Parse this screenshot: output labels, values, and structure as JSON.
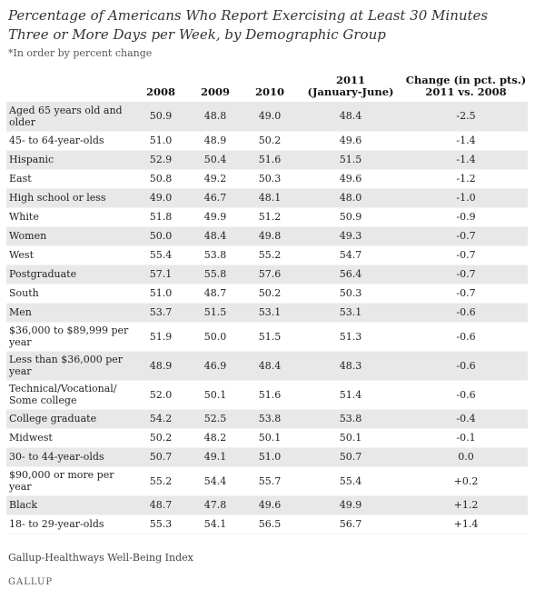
{
  "title": "Percentage of Americans Who Report Exercising at Least 30 Minutes Three or More Days per Week, by Demographic Group",
  "note": "*In order by percent change",
  "source": "Gallup-Healthways Well-Being Index",
  "logo": "GALLUP",
  "columns": {
    "c2008": "2008",
    "c2009": "2009",
    "c2010": "2010",
    "c2011_line1": "2011",
    "c2011_line2": "(January-June)",
    "change_line1": "Change (in pct. pts.)",
    "change_line2": "2011 vs. 2008"
  },
  "chart_data": {
    "type": "table",
    "title": "Percentage of Americans Who Report Exercising at Least 30 Minutes Three or More Days per Week, by Demographic Group",
    "columns": [
      "",
      "2008",
      "2009",
      "2010",
      "2011 (January-June)",
      "Change (in pct. pts.) 2011 vs. 2008"
    ],
    "rows": [
      {
        "label": "Aged 65 years old and older",
        "v2008": "50.9",
        "v2009": "48.8",
        "v2010": "49.0",
        "v2011": "48.4",
        "change": "-2.5"
      },
      {
        "label": "45- to 64-year-olds",
        "v2008": "51.0",
        "v2009": "48.9",
        "v2010": "50.2",
        "v2011": "49.6",
        "change": "-1.4"
      },
      {
        "label": "Hispanic",
        "v2008": "52.9",
        "v2009": "50.4",
        "v2010": "51.6",
        "v2011": "51.5",
        "change": "-1.4"
      },
      {
        "label": "East",
        "v2008": "50.8",
        "v2009": "49.2",
        "v2010": "50.3",
        "v2011": "49.6",
        "change": "-1.2"
      },
      {
        "label": "High school or less",
        "v2008": "49.0",
        "v2009": "46.7",
        "v2010": "48.1",
        "v2011": "48.0",
        "change": "-1.0"
      },
      {
        "label": "White",
        "v2008": "51.8",
        "v2009": "49.9",
        "v2010": "51.2",
        "v2011": "50.9",
        "change": "-0.9"
      },
      {
        "label": "Women",
        "v2008": "50.0",
        "v2009": "48.4",
        "v2010": "49.8",
        "v2011": "49.3",
        "change": "-0.7"
      },
      {
        "label": "West",
        "v2008": "55.4",
        "v2009": "53.8",
        "v2010": "55.2",
        "v2011": "54.7",
        "change": "-0.7"
      },
      {
        "label": "Postgraduate",
        "v2008": "57.1",
        "v2009": "55.8",
        "v2010": "57.6",
        "v2011": "56.4",
        "change": "-0.7"
      },
      {
        "label": "South",
        "v2008": "51.0",
        "v2009": "48.7",
        "v2010": "50.2",
        "v2011": "50.3",
        "change": "-0.7"
      },
      {
        "label": "Men",
        "v2008": "53.7",
        "v2009": "51.5",
        "v2010": "53.1",
        "v2011": "53.1",
        "change": "-0.6"
      },
      {
        "label": "$36,000 to $89,999 per year",
        "v2008": "51.9",
        "v2009": "50.0",
        "v2010": "51.5",
        "v2011": "51.3",
        "change": "-0.6"
      },
      {
        "label": "Less than $36,000 per year",
        "v2008": "48.9",
        "v2009": "46.9",
        "v2010": "48.4",
        "v2011": "48.3",
        "change": "-0.6"
      },
      {
        "label": "Technical/Vocational/ Some college",
        "v2008": "52.0",
        "v2009": "50.1",
        "v2010": "51.6",
        "v2011": "51.4",
        "change": "-0.6"
      },
      {
        "label": "College graduate",
        "v2008": "54.2",
        "v2009": "52.5",
        "v2010": "53.8",
        "v2011": "53.8",
        "change": "-0.4"
      },
      {
        "label": "Midwest",
        "v2008": "50.2",
        "v2009": "48.2",
        "v2010": "50.1",
        "v2011": "50.1",
        "change": "-0.1"
      },
      {
        "label": "30- to 44-year-olds",
        "v2008": "50.7",
        "v2009": "49.1",
        "v2010": "51.0",
        "v2011": "50.7",
        "change": "0.0"
      },
      {
        "label": "$90,000 or more per year",
        "v2008": "55.2",
        "v2009": "54.4",
        "v2010": "55.7",
        "v2011": "55.4",
        "change": "+0.2"
      },
      {
        "label": "Black",
        "v2008": "48.7",
        "v2009": "47.8",
        "v2010": "49.6",
        "v2011": "49.9",
        "change": "+1.2"
      },
      {
        "label": "18- to 29-year-olds",
        "v2008": "55.3",
        "v2009": "54.1",
        "v2010": "56.5",
        "v2011": "56.7",
        "change": "+1.4"
      }
    ]
  }
}
